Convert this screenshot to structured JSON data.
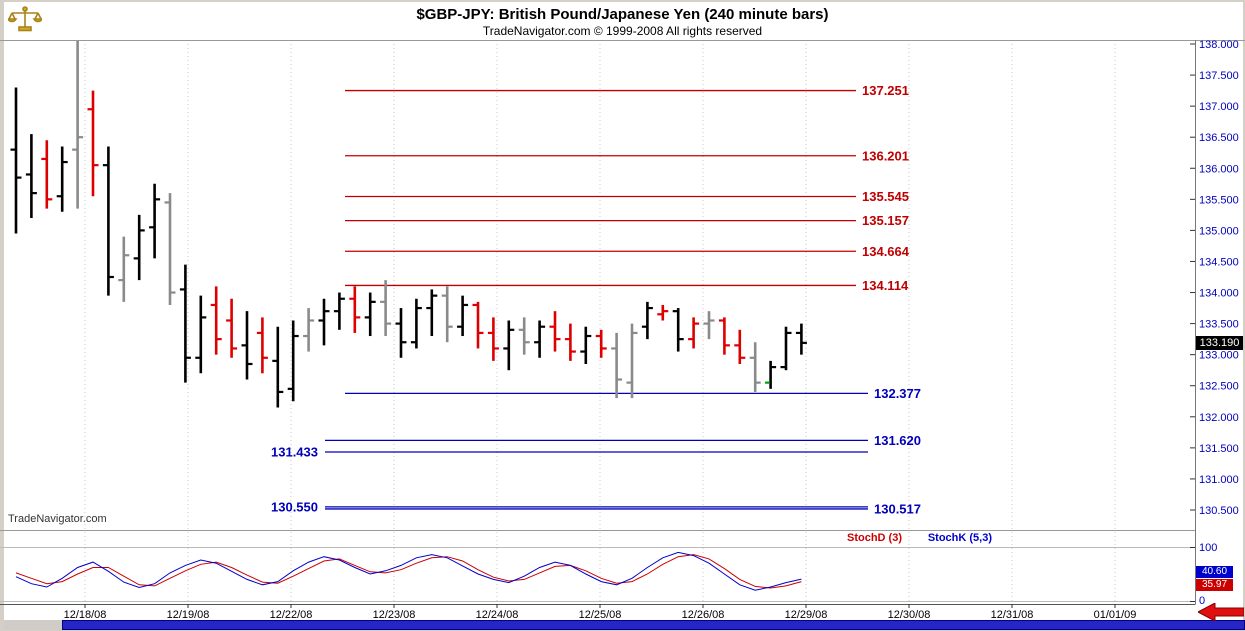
{
  "window": {
    "title": "$GBP-JPY:  British Pound/Japanese Yen  (240 minute bars)",
    "subtitle": "TradeNavigator.com © 1999-2008 All rights reserved",
    "logo": "scales-icon"
  },
  "watermark": "TradeNavigator.com",
  "last_price": "133.190",
  "price_axis": {
    "max": 138.0,
    "min": 130.5,
    "step": 0.5
  },
  "colors": {
    "bar_black": "#000000",
    "bar_red": "#dd0000",
    "bar_gray": "#8a8a8a",
    "level_red": "#c00000",
    "level_blue": "#0000bb",
    "axis_text": "#0000bb",
    "grid": "#c8c8c8",
    "badge_last_bg": "#000000",
    "scrollbar": "#2626c8",
    "arrow_red": "#e01010",
    "signal_green": "#00a000"
  },
  "chart_data": {
    "type": "ohlc",
    "title": "$GBP-JPY British Pound/Japanese Yen (240 minute bars)",
    "ylim": [
      130.5,
      138.0
    ],
    "x_dates": [
      "12/18/08",
      "12/19/08",
      "12/22/08",
      "12/23/08",
      "12/24/08",
      "12/25/08",
      "12/26/08",
      "12/29/08",
      "12/30/08",
      "12/31/08",
      "01/01/09"
    ],
    "resistance_levels": [
      {
        "price": 137.251,
        "label": "137.251"
      },
      {
        "price": 136.201,
        "label": "136.201"
      },
      {
        "price": 135.545,
        "label": "135.545"
      },
      {
        "price": 135.157,
        "label": "135.157"
      },
      {
        "price": 134.664,
        "label": "134.664"
      },
      {
        "price": 134.114,
        "label": "134.114"
      }
    ],
    "support_levels": [
      {
        "price": 132.377,
        "label": "132.377",
        "side": "right"
      },
      {
        "price": 131.62,
        "label": "131.620",
        "side": "right"
      },
      {
        "price": 131.433,
        "label": "131.433",
        "side": "left"
      },
      {
        "price": 130.55,
        "label": "130.550",
        "side": "left"
      },
      {
        "price": 130.517,
        "label": "130.517",
        "side": "right"
      }
    ],
    "bars": [
      {
        "o": 136.3,
        "h": 137.3,
        "l": 134.95,
        "c": 135.85,
        "color": "black"
      },
      {
        "o": 135.9,
        "h": 136.55,
        "l": 135.2,
        "c": 135.6,
        "color": "black"
      },
      {
        "o": 136.15,
        "h": 136.45,
        "l": 135.35,
        "c": 135.5,
        "color": "red"
      },
      {
        "o": 135.55,
        "h": 136.35,
        "l": 135.3,
        "c": 136.1,
        "color": "black"
      },
      {
        "o": 136.3,
        "h": 138.05,
        "l": 135.35,
        "c": 136.5,
        "color": "gray"
      },
      {
        "o": 136.95,
        "h": 137.25,
        "l": 135.55,
        "c": 136.05,
        "color": "red"
      },
      {
        "o": 136.05,
        "h": 136.35,
        "l": 133.95,
        "c": 134.25,
        "color": "black"
      },
      {
        "o": 134.2,
        "h": 134.9,
        "l": 133.85,
        "c": 134.6,
        "color": "gray"
      },
      {
        "o": 134.55,
        "h": 135.25,
        "l": 134.2,
        "c": 135.0,
        "color": "black"
      },
      {
        "o": 135.05,
        "h": 135.75,
        "l": 134.55,
        "c": 135.5,
        "color": "black"
      },
      {
        "o": 135.45,
        "h": 135.6,
        "l": 133.8,
        "c": 134.0,
        "color": "gray"
      },
      {
        "o": 134.05,
        "h": 134.45,
        "l": 132.55,
        "c": 132.95,
        "color": "black"
      },
      {
        "o": 132.95,
        "h": 133.95,
        "l": 132.7,
        "c": 133.6,
        "color": "black"
      },
      {
        "o": 133.8,
        "h": 134.1,
        "l": 133.0,
        "c": 133.25,
        "color": "red"
      },
      {
        "o": 133.55,
        "h": 133.9,
        "l": 132.95,
        "c": 133.1,
        "color": "red"
      },
      {
        "o": 133.15,
        "h": 133.7,
        "l": 132.6,
        "c": 132.85,
        "color": "black"
      },
      {
        "o": 133.35,
        "h": 133.6,
        "l": 132.7,
        "c": 132.95,
        "color": "red"
      },
      {
        "o": 132.9,
        "h": 133.45,
        "l": 132.15,
        "c": 132.4,
        "color": "black"
      },
      {
        "o": 132.45,
        "h": 133.55,
        "l": 132.25,
        "c": 133.3,
        "color": "black"
      },
      {
        "o": 133.3,
        "h": 133.75,
        "l": 133.05,
        "c": 133.55,
        "color": "gray"
      },
      {
        "o": 133.55,
        "h": 133.9,
        "l": 133.15,
        "c": 133.7,
        "color": "black"
      },
      {
        "o": 133.7,
        "h": 134.0,
        "l": 133.4,
        "c": 133.9,
        "color": "black"
      },
      {
        "o": 133.9,
        "h": 134.1,
        "l": 133.35,
        "c": 133.6,
        "color": "red"
      },
      {
        "o": 133.6,
        "h": 134.0,
        "l": 133.3,
        "c": 133.85,
        "color": "black"
      },
      {
        "o": 133.85,
        "h": 134.2,
        "l": 133.3,
        "c": 133.5,
        "color": "gray"
      },
      {
        "o": 133.5,
        "h": 133.75,
        "l": 132.95,
        "c": 133.2,
        "color": "black"
      },
      {
        "o": 133.2,
        "h": 133.9,
        "l": 133.1,
        "c": 133.75,
        "color": "black"
      },
      {
        "o": 133.75,
        "h": 134.05,
        "l": 133.3,
        "c": 133.95,
        "color": "black"
      },
      {
        "o": 133.95,
        "h": 134.1,
        "l": 133.2,
        "c": 133.45,
        "color": "gray"
      },
      {
        "o": 133.45,
        "h": 133.95,
        "l": 133.3,
        "c": 133.8,
        "color": "black"
      },
      {
        "o": 133.8,
        "h": 133.85,
        "l": 133.1,
        "c": 133.35,
        "color": "red"
      },
      {
        "o": 133.35,
        "h": 133.6,
        "l": 132.9,
        "c": 133.1,
        "color": "red"
      },
      {
        "o": 133.1,
        "h": 133.55,
        "l": 132.75,
        "c": 133.4,
        "color": "black"
      },
      {
        "o": 133.4,
        "h": 133.6,
        "l": 133.0,
        "c": 133.2,
        "color": "gray"
      },
      {
        "o": 133.2,
        "h": 133.55,
        "l": 132.95,
        "c": 133.45,
        "color": "black"
      },
      {
        "o": 133.45,
        "h": 133.7,
        "l": 133.05,
        "c": 133.25,
        "color": "red"
      },
      {
        "o": 133.25,
        "h": 133.5,
        "l": 132.9,
        "c": 133.05,
        "color": "red"
      },
      {
        "o": 133.05,
        "h": 133.45,
        "l": 132.85,
        "c": 133.3,
        "color": "black"
      },
      {
        "o": 133.3,
        "h": 133.4,
        "l": 132.95,
        "c": 133.1,
        "color": "red"
      },
      {
        "o": 133.1,
        "h": 133.35,
        "l": 132.3,
        "c": 132.6,
        "color": "gray"
      },
      {
        "o": 132.55,
        "h": 133.5,
        "l": 132.3,
        "c": 133.35,
        "color": "gray"
      },
      {
        "o": 133.45,
        "h": 133.85,
        "l": 133.25,
        "c": 133.75,
        "color": "black"
      },
      {
        "o": 133.65,
        "h": 133.8,
        "l": 133.55,
        "c": 133.7,
        "color": "red"
      },
      {
        "o": 133.7,
        "h": 133.75,
        "l": 133.05,
        "c": 133.25,
        "color": "black"
      },
      {
        "o": 133.25,
        "h": 133.6,
        "l": 133.1,
        "c": 133.5,
        "color": "red"
      },
      {
        "o": 133.5,
        "h": 133.7,
        "l": 133.25,
        "c": 133.55,
        "color": "gray"
      },
      {
        "o": 133.55,
        "h": 133.6,
        "l": 133.0,
        "c": 133.15,
        "color": "red"
      },
      {
        "o": 133.15,
        "h": 133.4,
        "l": 132.85,
        "c": 132.95,
        "color": "red"
      },
      {
        "o": 132.95,
        "h": 133.2,
        "l": 132.4,
        "c": 132.55,
        "color": "gray"
      },
      {
        "o": 132.55,
        "h": 132.9,
        "l": 132.45,
        "c": 132.8,
        "color": "black",
        "mark": "green"
      },
      {
        "o": 132.8,
        "h": 133.45,
        "l": 132.75,
        "c": 133.35,
        "color": "black"
      },
      {
        "o": 133.35,
        "h": 133.5,
        "l": 133.0,
        "c": 133.19,
        "color": "black"
      }
    ],
    "stochastic": {
      "d_label": "StochD (3)",
      "k_label": "StochK (5,3)",
      "d_color": "#cc0000",
      "k_color": "#0000cc",
      "d_value": "35.97",
      "k_value": "40.60",
      "ylim": [
        0,
        100
      ],
      "axis_labels": [
        "100",
        "0"
      ],
      "k": [
        45,
        32,
        26,
        42,
        62,
        72,
        55,
        35,
        25,
        32,
        52,
        66,
        76,
        70,
        55,
        40,
        30,
        36,
        56,
        72,
        82,
        76,
        62,
        50,
        56,
        66,
        80,
        86,
        80,
        65,
        50,
        40,
        34,
        46,
        62,
        72,
        66,
        50,
        36,
        30,
        42,
        62,
        80,
        90,
        84,
        70,
        50,
        30,
        20,
        26,
        34,
        40.6
      ],
      "d": [
        52,
        42,
        32,
        36,
        50,
        62,
        62,
        46,
        30,
        28,
        42,
        56,
        68,
        72,
        62,
        48,
        35,
        33,
        46,
        60,
        74,
        78,
        66,
        54,
        52,
        58,
        70,
        80,
        82,
        74,
        58,
        44,
        37,
        40,
        52,
        64,
        66,
        56,
        42,
        33,
        36,
        50,
        68,
        82,
        86,
        78,
        60,
        40,
        27,
        24,
        28,
        35.97
      ]
    }
  }
}
